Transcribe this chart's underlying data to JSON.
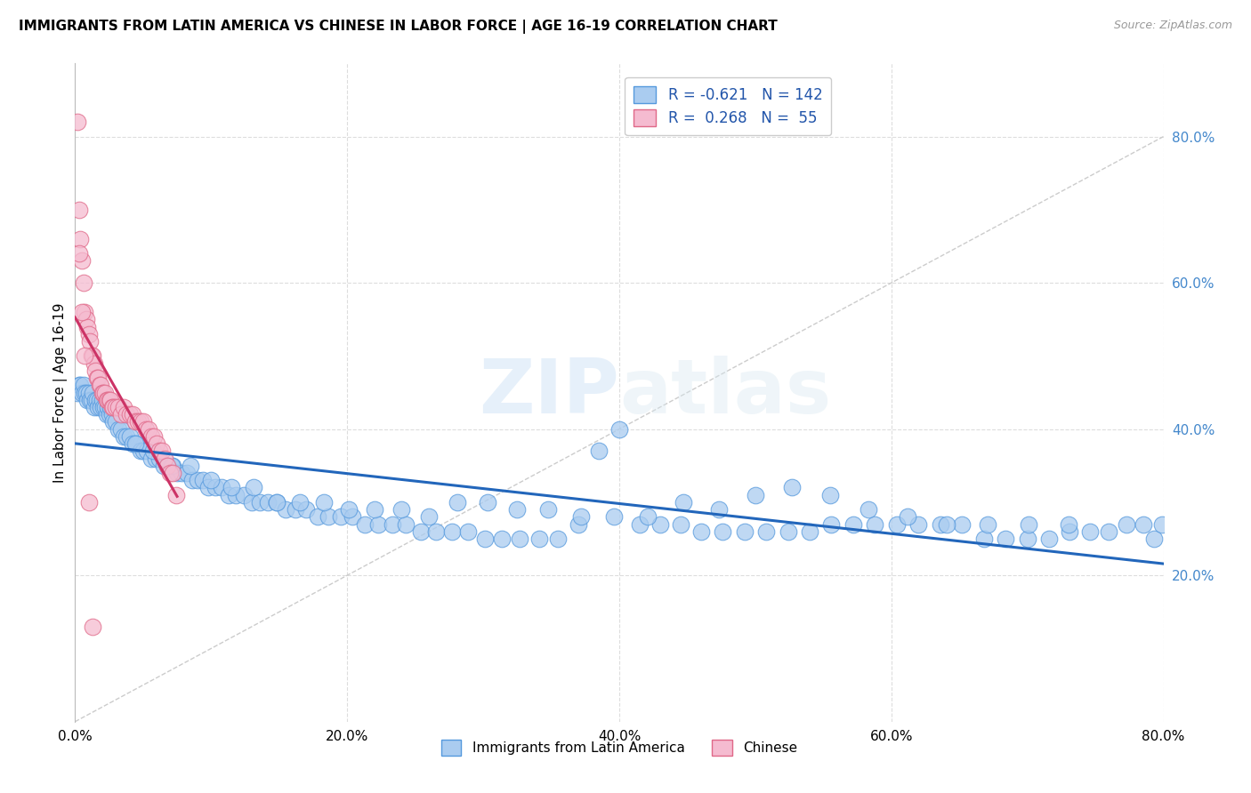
{
  "title": "IMMIGRANTS FROM LATIN AMERICA VS CHINESE IN LABOR FORCE | AGE 16-19 CORRELATION CHART",
  "source": "Source: ZipAtlas.com",
  "ylabel": "In Labor Force | Age 16-19",
  "watermark": "ZIPatlas",
  "xlim": [
    0.0,
    0.8
  ],
  "ylim": [
    0.0,
    0.9
  ],
  "xtickvals": [
    0.0,
    0.2,
    0.4,
    0.6,
    0.8
  ],
  "ytickvals_right": [
    0.2,
    0.4,
    0.6,
    0.8
  ],
  "legend_latin_R": "-0.621",
  "legend_latin_N": "142",
  "legend_chinese_R": "0.268",
  "legend_chinese_N": "55",
  "latin_color": "#aaccf0",
  "latin_edge_color": "#5599dd",
  "chinese_color": "#f5bbd0",
  "chinese_edge_color": "#e06888",
  "latin_trendline_color": "#2266bb",
  "chinese_trendline_color": "#cc3366",
  "diagonal_color": "#cccccc",
  "grid_color": "#dddddd",
  "right_axis_color": "#4488cc",
  "latin_x": [
    0.002,
    0.003,
    0.004,
    0.005,
    0.006,
    0.007,
    0.008,
    0.009,
    0.01,
    0.011,
    0.012,
    0.013,
    0.014,
    0.015,
    0.016,
    0.017,
    0.018,
    0.019,
    0.02,
    0.021,
    0.022,
    0.023,
    0.024,
    0.025,
    0.026,
    0.027,
    0.028,
    0.03,
    0.032,
    0.034,
    0.036,
    0.038,
    0.04,
    0.042,
    0.045,
    0.048,
    0.05,
    0.053,
    0.056,
    0.059,
    0.062,
    0.065,
    0.068,
    0.072,
    0.075,
    0.078,
    0.082,
    0.086,
    0.09,
    0.094,
    0.098,
    0.103,
    0.108,
    0.113,
    0.118,
    0.124,
    0.13,
    0.136,
    0.142,
    0.148,
    0.155,
    0.162,
    0.17,
    0.178,
    0.186,
    0.195,
    0.204,
    0.213,
    0.223,
    0.233,
    0.243,
    0.254,
    0.265,
    0.277,
    0.289,
    0.301,
    0.314,
    0.327,
    0.341,
    0.355,
    0.37,
    0.385,
    0.4,
    0.415,
    0.43,
    0.445,
    0.46,
    0.476,
    0.492,
    0.508,
    0.524,
    0.54,
    0.556,
    0.572,
    0.588,
    0.604,
    0.62,
    0.636,
    0.652,
    0.668,
    0.684,
    0.7,
    0.716,
    0.731,
    0.746,
    0.76,
    0.773,
    0.785,
    0.793,
    0.799,
    0.044,
    0.057,
    0.071,
    0.085,
    0.1,
    0.115,
    0.131,
    0.148,
    0.165,
    0.183,
    0.201,
    0.22,
    0.24,
    0.26,
    0.281,
    0.303,
    0.325,
    0.348,
    0.372,
    0.396,
    0.421,
    0.447,
    0.473,
    0.5,
    0.527,
    0.555,
    0.583,
    0.612,
    0.641,
    0.671,
    0.701,
    0.73
  ],
  "latin_y": [
    0.45,
    0.46,
    0.46,
    0.45,
    0.46,
    0.45,
    0.45,
    0.44,
    0.45,
    0.44,
    0.44,
    0.45,
    0.43,
    0.44,
    0.44,
    0.43,
    0.44,
    0.43,
    0.44,
    0.43,
    0.43,
    0.42,
    0.43,
    0.42,
    0.43,
    0.42,
    0.41,
    0.41,
    0.4,
    0.4,
    0.39,
    0.39,
    0.39,
    0.38,
    0.38,
    0.37,
    0.37,
    0.37,
    0.36,
    0.36,
    0.36,
    0.35,
    0.35,
    0.35,
    0.34,
    0.34,
    0.34,
    0.33,
    0.33,
    0.33,
    0.32,
    0.32,
    0.32,
    0.31,
    0.31,
    0.31,
    0.3,
    0.3,
    0.3,
    0.3,
    0.29,
    0.29,
    0.29,
    0.28,
    0.28,
    0.28,
    0.28,
    0.27,
    0.27,
    0.27,
    0.27,
    0.26,
    0.26,
    0.26,
    0.26,
    0.25,
    0.25,
    0.25,
    0.25,
    0.25,
    0.27,
    0.37,
    0.4,
    0.27,
    0.27,
    0.27,
    0.26,
    0.26,
    0.26,
    0.26,
    0.26,
    0.26,
    0.27,
    0.27,
    0.27,
    0.27,
    0.27,
    0.27,
    0.27,
    0.25,
    0.25,
    0.25,
    0.25,
    0.26,
    0.26,
    0.26,
    0.27,
    0.27,
    0.25,
    0.27,
    0.38,
    0.37,
    0.35,
    0.35,
    0.33,
    0.32,
    0.32,
    0.3,
    0.3,
    0.3,
    0.29,
    0.29,
    0.29,
    0.28,
    0.3,
    0.3,
    0.29,
    0.29,
    0.28,
    0.28,
    0.28,
    0.3,
    0.29,
    0.31,
    0.32,
    0.31,
    0.29,
    0.28,
    0.27,
    0.27,
    0.27,
    0.27
  ],
  "chinese_x": [
    0.002,
    0.003,
    0.004,
    0.005,
    0.006,
    0.007,
    0.008,
    0.009,
    0.01,
    0.011,
    0.012,
    0.013,
    0.014,
    0.015,
    0.016,
    0.017,
    0.018,
    0.019,
    0.02,
    0.021,
    0.022,
    0.023,
    0.024,
    0.025,
    0.026,
    0.027,
    0.028,
    0.03,
    0.032,
    0.034,
    0.036,
    0.038,
    0.04,
    0.042,
    0.044,
    0.046,
    0.048,
    0.05,
    0.052,
    0.054,
    0.056,
    0.058,
    0.06,
    0.062,
    0.064,
    0.066,
    0.068,
    0.07,
    0.072,
    0.074,
    0.003,
    0.005,
    0.007,
    0.01,
    0.013
  ],
  "chinese_y": [
    0.82,
    0.7,
    0.66,
    0.63,
    0.6,
    0.56,
    0.55,
    0.54,
    0.53,
    0.52,
    0.5,
    0.5,
    0.49,
    0.48,
    0.47,
    0.47,
    0.46,
    0.46,
    0.45,
    0.45,
    0.45,
    0.44,
    0.44,
    0.44,
    0.44,
    0.43,
    0.43,
    0.43,
    0.43,
    0.42,
    0.43,
    0.42,
    0.42,
    0.42,
    0.41,
    0.41,
    0.41,
    0.41,
    0.4,
    0.4,
    0.39,
    0.39,
    0.38,
    0.37,
    0.37,
    0.36,
    0.35,
    0.34,
    0.34,
    0.31,
    0.64,
    0.56,
    0.5,
    0.3,
    0.13
  ]
}
